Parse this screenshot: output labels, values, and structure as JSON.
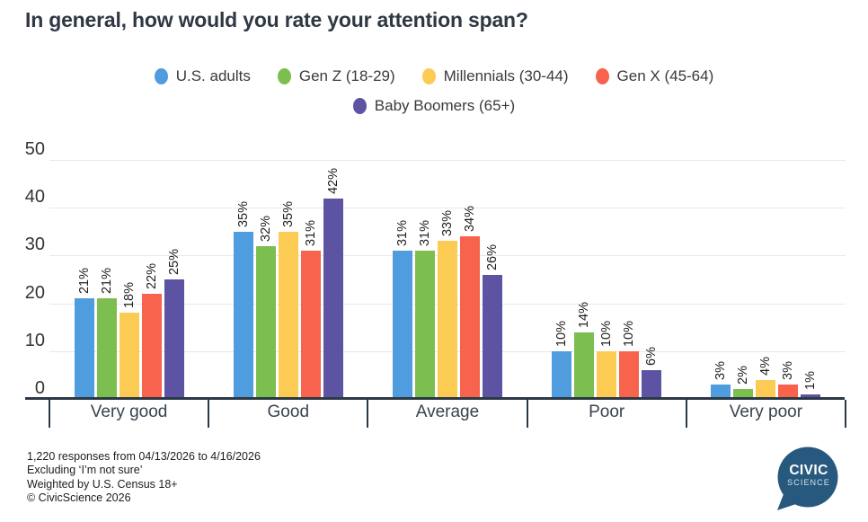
{
  "title": "In general, how would you rate your attention span?",
  "chart_data": {
    "type": "bar",
    "title": "In general, how would you rate your attention span?",
    "categories": [
      "Very good",
      "Good",
      "Average",
      "Poor",
      "Very poor"
    ],
    "series": [
      {
        "name": "U.S. adults",
        "color": "#4f9cdf",
        "values": [
          21,
          35,
          31,
          10,
          3
        ]
      },
      {
        "name": "Gen Z (18-29)",
        "color": "#7dbe50",
        "values": [
          21,
          32,
          31,
          14,
          2
        ]
      },
      {
        "name": "Millennials (30-44)",
        "color": "#fccb53",
        "values": [
          18,
          35,
          33,
          10,
          4
        ]
      },
      {
        "name": "Gen X (45-64)",
        "color": "#f8634d",
        "values": [
          22,
          31,
          34,
          10,
          3
        ]
      },
      {
        "name": "Baby Boomers (65+)",
        "color": "#5c53a3",
        "values": [
          25,
          42,
          26,
          6,
          1
        ]
      }
    ],
    "value_suffix": "%",
    "ylim": [
      0,
      50
    ],
    "yticks": [
      0,
      10,
      20,
      30,
      40,
      50
    ],
    "grid": true,
    "legend_position": "top-center",
    "legend_rows": [
      [
        0,
        1,
        2,
        3
      ],
      [
        4
      ]
    ],
    "value_labels_rotated": true
  },
  "footer": {
    "lines": [
      "1,220 responses from 04/13/2026 to 4/16/2026",
      "Excluding ‘I’m not sure’",
      "Weighted by U.S. Census 18+",
      "© CivicScience 2026"
    ]
  },
  "logo": {
    "line1": "CIVIC",
    "line2": "SCIENCE",
    "color": "#27597f"
  },
  "colors": {
    "axis": "#2c3945",
    "gridline": "#e8e8e8",
    "title_text": "#2f3843"
  }
}
